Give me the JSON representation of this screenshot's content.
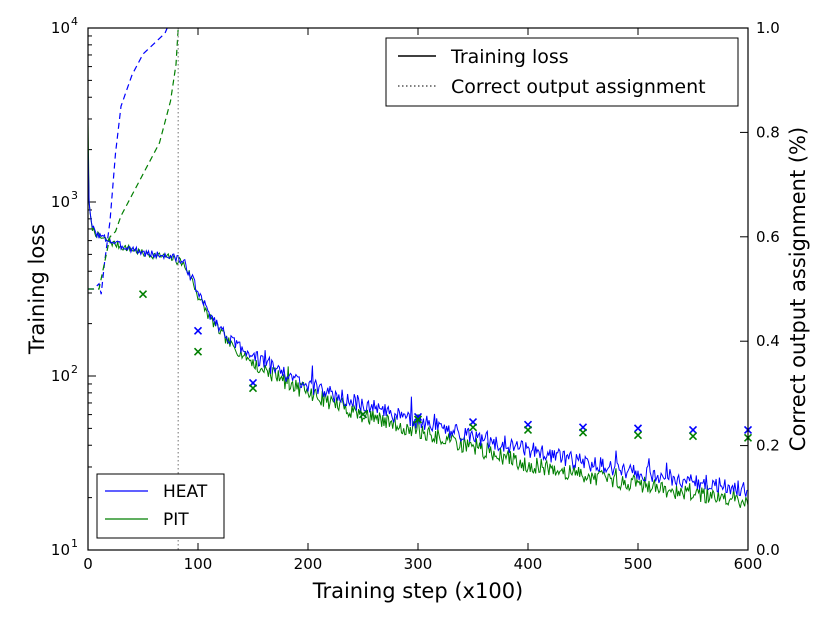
{
  "chart_data": {
    "type": "line",
    "xlabel": "Training step (x100)",
    "ylabel_left": "Training loss",
    "ylabel_right": "Correct output assignment (%)",
    "xlim": [
      0,
      600
    ],
    "ylim_left": [
      10,
      10000
    ],
    "ylim_right": [
      0.0,
      1.0
    ],
    "yscale_left": "log",
    "x_ticks": [
      "0",
      "100",
      "200",
      "300",
      "400",
      "500",
      "600"
    ],
    "x_tick_values": [
      0,
      100,
      200,
      300,
      400,
      500,
      600
    ],
    "y_left_ticks": [
      {
        "value": 10,
        "base": "10",
        "exp": "1"
      },
      {
        "value": 100,
        "base": "10",
        "exp": "2"
      },
      {
        "value": 1000,
        "base": "10",
        "exp": "3"
      },
      {
        "value": 10000,
        "base": "10",
        "exp": "4"
      }
    ],
    "y_right_ticks": [
      "0.0",
      "0.2",
      "0.4",
      "0.6",
      "0.8",
      "1.0"
    ],
    "y_right_tick_values": [
      0.0,
      0.2,
      0.4,
      0.6,
      0.8,
      1.0
    ],
    "vline_x": 82,
    "legend_style": {
      "position": "top-right",
      "entries": [
        "Training loss",
        "Correct output assignment"
      ]
    },
    "legend_series": {
      "position": "bottom-left",
      "entries": [
        "HEAT",
        "PIT"
      ]
    },
    "colors": {
      "HEAT": "#0000ff",
      "PIT": "#007f00",
      "vline": "#888888"
    },
    "loss_anchors": {
      "HEAT": {
        "x": [
          0,
          1,
          3,
          5,
          10,
          20,
          30,
          40,
          50,
          60,
          70,
          80,
          85,
          90,
          95,
          100,
          110,
          120,
          130,
          150,
          170,
          200,
          250,
          300,
          350,
          400,
          450,
          500,
          550,
          600
        ],
        "y": [
          2000,
          1000,
          750,
          700,
          640,
          600,
          560,
          540,
          510,
          500,
          490,
          480,
          460,
          420,
          360,
          300,
          230,
          190,
          160,
          130,
          110,
          88,
          68,
          55,
          45,
          38,
          32,
          28,
          25,
          22
        ]
      },
      "PIT": {
        "x": [
          0,
          1,
          3,
          5,
          10,
          20,
          30,
          40,
          50,
          60,
          70,
          80,
          85,
          90,
          95,
          100,
          110,
          120,
          130,
          150,
          170,
          200,
          250,
          300,
          350,
          400,
          450,
          500,
          550,
          600
        ],
        "y": [
          3000,
          1000,
          740,
          690,
          630,
          590,
          555,
          535,
          505,
          495,
          485,
          470,
          450,
          410,
          350,
          290,
          220,
          180,
          150,
          120,
          100,
          80,
          60,
          48,
          39,
          31,
          27,
          24,
          21,
          19
        ]
      }
    },
    "assignment_curves": {
      "HEAT": {
        "x": [
          0,
          5,
          10,
          12,
          15,
          20,
          25,
          30,
          35,
          40,
          45,
          50,
          55,
          60,
          65,
          70,
          72
        ],
        "y": [
          0.5,
          0.5,
          0.51,
          0.49,
          0.55,
          0.63,
          0.76,
          0.85,
          0.88,
          0.91,
          0.93,
          0.95,
          0.96,
          0.97,
          0.98,
          0.99,
          1.0
        ]
      },
      "PIT": {
        "x": [
          0,
          10,
          15,
          20,
          25,
          30,
          35,
          40,
          45,
          50,
          55,
          60,
          65,
          70,
          75,
          80,
          82
        ],
        "y": [
          0.5,
          0.5,
          0.55,
          0.6,
          0.61,
          0.64,
          0.66,
          0.68,
          0.7,
          0.72,
          0.74,
          0.76,
          0.78,
          0.82,
          0.86,
          0.93,
          1.0
        ]
      }
    },
    "assignment_markers": {
      "HEAT": {
        "x": [
          100,
          150,
          250,
          300,
          350,
          400,
          450,
          500,
          550,
          600
        ],
        "y": [
          0.42,
          0.32,
          0.26,
          0.255,
          0.245,
          0.24,
          0.235,
          0.233,
          0.23,
          0.23
        ]
      },
      "PIT": {
        "x": [
          50,
          100,
          150,
          250,
          300,
          350,
          400,
          450,
          500,
          550,
          600
        ],
        "y": [
          0.49,
          0.38,
          0.31,
          0.26,
          0.25,
          0.235,
          0.23,
          0.225,
          0.22,
          0.218,
          0.215
        ]
      }
    }
  }
}
